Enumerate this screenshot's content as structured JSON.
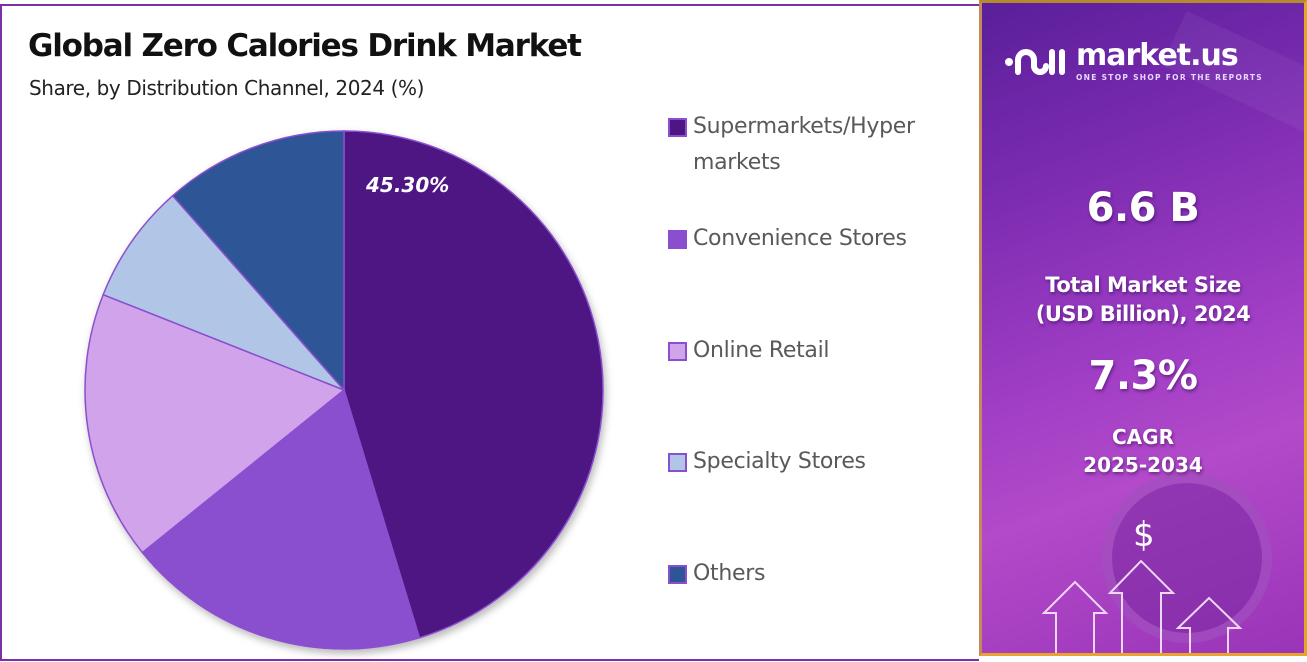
{
  "header": {
    "title": "Global Zero Calories Drink Market",
    "subtitle": "Share, by Distribution Channel, 2024 (%)"
  },
  "chart_data": {
    "type": "pie",
    "title": "Global Zero Calories Drink Market",
    "subtitle": "Share, by Distribution Channel, 2024 (%)",
    "categories": [
      "Supermarkets/Hypermarkets",
      "Convenience Stores",
      "Online Retail",
      "Specialty Stores",
      "Others"
    ],
    "values": [
      45.3,
      18.9,
      16.8,
      7.5,
      11.5
    ],
    "colors": [
      "#4e1683",
      "#8a4fcf",
      "#d0a3ea",
      "#b1c5e6",
      "#2e5595"
    ],
    "data_labels": [
      "45.30%",
      "",
      "",
      "",
      ""
    ],
    "start_angle": "12 o'clock, clockwise",
    "legend_position": "right"
  },
  "pie": {
    "label": "45.30%"
  },
  "legend": {
    "items": [
      {
        "label_line1": "Supermarkets/Hyper",
        "label_line2": "markets",
        "color": "#4e1683"
      },
      {
        "label_line1": "Convenience Stores",
        "color": "#8a4fcf"
      },
      {
        "label_line1": "Online Retail",
        "color": "#d0a3ea"
      },
      {
        "label_line1": "Specialty Stores",
        "color": "#b1c5e6"
      },
      {
        "label_line1": "Others",
        "color": "#2e5595"
      }
    ]
  },
  "card": {
    "logo_name": "market.us",
    "logo_tagline": "ONE STOP SHOP FOR THE REPORTS",
    "market_size_value": "6.6 B",
    "market_size_label_line1": "Total Market Size",
    "market_size_label_line2": "(USD Billion), 2024",
    "cagr_value": "7.3%",
    "cagr_label_line1": "CAGR",
    "cagr_label_line2": "2025-2034",
    "dollar_symbol": "$"
  }
}
